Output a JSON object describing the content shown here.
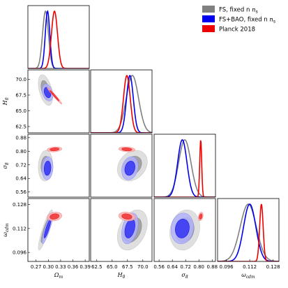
{
  "chart_data": {
    "type": "triangle-corner",
    "parameters": [
      {
        "key": "om",
        "label": "Ω",
        "sub": "m",
        "range": [
          0.25,
          0.4
        ],
        "ticks": [
          "0.27",
          "0.30",
          "0.33",
          "0.36",
          "0.39"
        ]
      },
      {
        "key": "H0",
        "label": "H",
        "sub": "0",
        "range": [
          61.5,
          71.5
        ],
        "ticks": [
          "62.5",
          "65.0",
          "67.5",
          "70.0"
        ]
      },
      {
        "key": "s8",
        "label": "σ",
        "sub": "8",
        "range": [
          0.53,
          0.9
        ],
        "ticks": [
          "0.56",
          "0.64",
          "0.72",
          "0.80",
          "0.88"
        ]
      },
      {
        "key": "wc",
        "label": "ω",
        "sub": "cdm",
        "range": [
          0.09,
          0.132
        ],
        "ticks": [
          "0.096",
          "0.112",
          "0.128"
        ]
      }
    ],
    "series": [
      {
        "name": "FS, fixed n",
        "name_sub": "s",
        "color": "#808080",
        "mean": {
          "om": 0.293,
          "H0": 68.3,
          "s8": 0.715,
          "wc": 0.111
        },
        "sd": {
          "om": 0.0072,
          "H0": 1.0,
          "s8": 0.037,
          "wc": 0.0055
        },
        "corr": {
          "H0|om": -0.45,
          "s8|om": 0.1,
          "s8|H0": 0.25,
          "wc|om": 0.88,
          "wc|H0": 0.35,
          "wc|s8": 0.15
        }
      },
      {
        "name": "FS+BAO, fixed n",
        "name_sub": "s",
        "color": "#0000ee",
        "mean": {
          "om": 0.298,
          "H0": 67.9,
          "s8": 0.7,
          "wc": 0.112
        },
        "sd": {
          "om": 0.0055,
          "H0": 0.55,
          "s8": 0.028,
          "wc": 0.0042
        },
        "corr": {
          "H0|om": -0.3,
          "s8|om": 0.1,
          "s8|H0": 0.2,
          "wc|om": 0.88,
          "wc|H0": 0.35,
          "wc|s8": 0.1
        }
      },
      {
        "name": "Planck 2018",
        "name_sub": "",
        "color": "#ee0000",
        "mean": {
          "om": 0.315,
          "H0": 67.4,
          "s8": 0.811,
          "wc": 0.12
        },
        "sd": {
          "om": 0.0074,
          "H0": 0.55,
          "s8": 0.006,
          "wc": 0.0012
        },
        "corr": {
          "H0|om": -0.98,
          "s8|om": 0.2,
          "s8|H0": -0.2,
          "wc|om": 0.2,
          "wc|H0": -0.2,
          "wc|s8": 0.3
        }
      }
    ],
    "legend_position": "top-right"
  }
}
